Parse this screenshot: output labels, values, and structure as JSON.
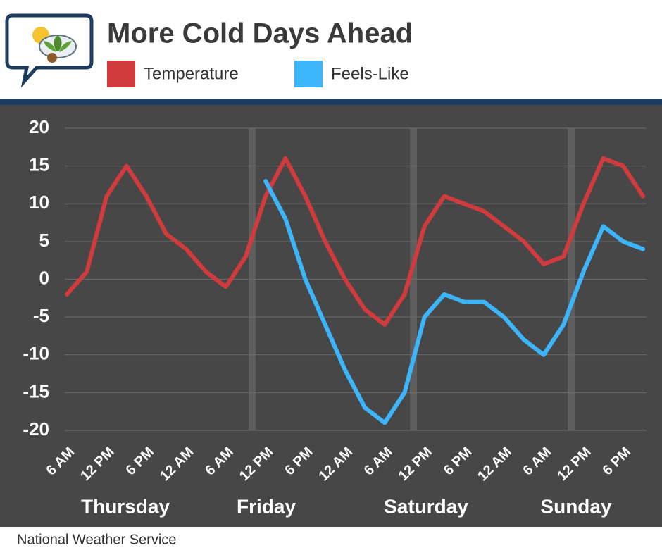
{
  "chart_data": {
    "type": "line",
    "title": "More Cold Days Ahead",
    "source": "National Weather Service",
    "categories": [
      "6 AM",
      null,
      "12 PM",
      null,
      "6 PM",
      null,
      "12 AM",
      null,
      "6 AM",
      null,
      "12 PM",
      null,
      "6 PM",
      null,
      "12 AM",
      null,
      "6 AM",
      null,
      "12 PM",
      null,
      "6 PM",
      null,
      "12 AM",
      null,
      "6 AM",
      null,
      "12 PM",
      null,
      "6 PM",
      null
    ],
    "days": [
      "Thursday",
      "Friday",
      "Saturday",
      "Sunday"
    ],
    "series": [
      {
        "name": "Temperature",
        "color": "#d13b3d",
        "values": [
          -2,
          1,
          11,
          15,
          11,
          6,
          4,
          1,
          -1,
          3,
          11,
          16,
          11,
          5,
          0,
          -4,
          -6,
          -2,
          7,
          11,
          10,
          9,
          7,
          5,
          2,
          3,
          10,
          16,
          15,
          11
        ]
      },
      {
        "name": "Feels-Like",
        "color": "#3db5fb",
        "values": [
          null,
          null,
          null,
          null,
          null,
          null,
          null,
          null,
          null,
          null,
          13,
          8,
          0,
          -6,
          -12,
          -17,
          -19,
          -15,
          -5,
          -2,
          -3,
          -3,
          -5,
          -8,
          -10,
          -6,
          1,
          7,
          5,
          4
        ]
      }
    ],
    "ylim": [
      -20,
      20
    ],
    "yticks": [
      -20,
      -15,
      -10,
      -5,
      0,
      5,
      10,
      15,
      20
    ],
    "grid": true
  }
}
